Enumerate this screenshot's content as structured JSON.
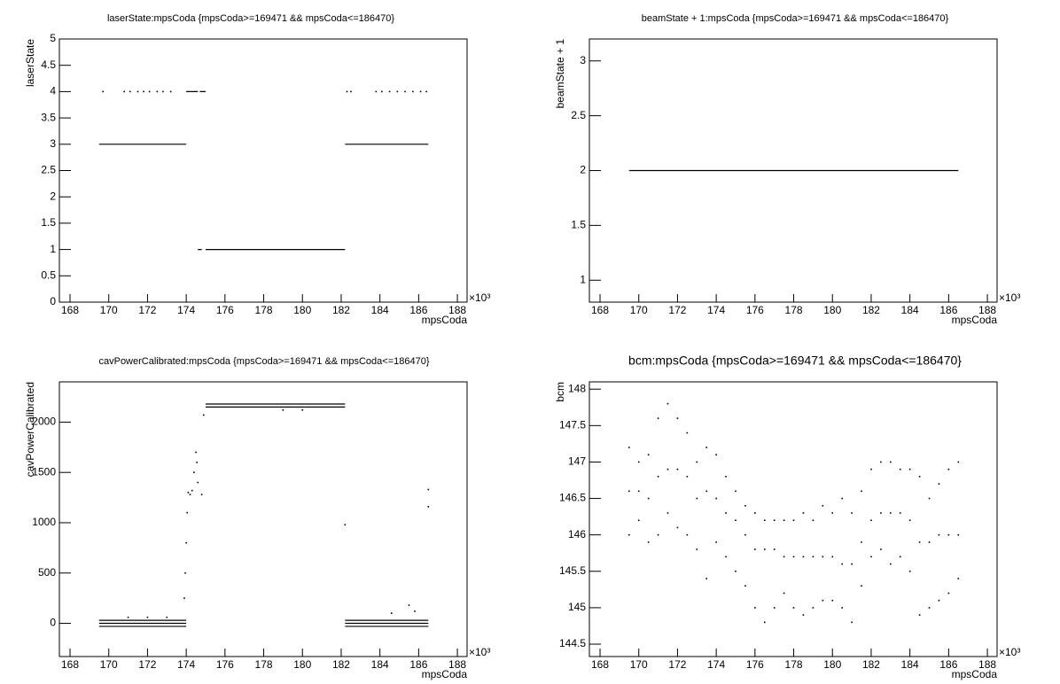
{
  "chart_data": [
    {
      "type": "scatter",
      "title": "laserState:mpsCoda {mpsCoda>=169471 && mpsCoda<=186470}",
      "xlabel": "mpsCoda",
      "ylabel": "laserState",
      "x_exponent": "×10³",
      "xlim": [
        167.45,
        188.5
      ],
      "xticks": [
        168,
        170,
        172,
        174,
        176,
        178,
        180,
        182,
        184,
        186,
        188
      ],
      "ylim": [
        0,
        5
      ],
      "yticks": [
        0,
        0.5,
        1,
        1.5,
        2,
        2.5,
        3,
        3.5,
        4,
        4.5,
        5
      ],
      "series": [
        {
          "color": "#000000",
          "connect": true,
          "x": [
            169.5,
            174.0,
            null,
            174.0,
            174.6,
            null,
            174.7,
            175.0,
            null,
            174.6,
            174.8,
            null,
            175.0,
            182.2,
            null,
            182.2,
            186.5
          ],
          "values": [
            3,
            3,
            null,
            4,
            4,
            null,
            4,
            4,
            null,
            1,
            1,
            null,
            1,
            1,
            null,
            3,
            3
          ]
        },
        {
          "color": "#000000",
          "connect": false,
          "x": [
            169.7,
            170.8,
            171.1,
            171.5,
            171.8,
            172.1,
            172.5,
            172.8,
            173.2,
            182.3,
            182.5,
            183.8,
            184.1,
            184.5,
            184.9,
            185.3,
            185.7,
            186.1,
            186.4
          ],
          "values": [
            4,
            4,
            4,
            4,
            4,
            4,
            4,
            4,
            4,
            4,
            4,
            4,
            4,
            4,
            4,
            4,
            4,
            4,
            4
          ]
        }
      ]
    },
    {
      "type": "scatter",
      "title": "beamState + 1:mpsCoda {mpsCoda>=169471 && mpsCoda<=186470}",
      "xlabel": "mpsCoda",
      "ylabel": "beamState + 1",
      "x_exponent": "×10³",
      "xlim": [
        167.45,
        188.5
      ],
      "xticks": [
        168,
        170,
        172,
        174,
        176,
        178,
        180,
        182,
        184,
        186,
        188
      ],
      "ylim": [
        0.8,
        3.2
      ],
      "yticks": [
        1,
        1.5,
        2,
        2.5,
        3
      ],
      "series": [
        {
          "color": "#000000",
          "connect": true,
          "x": [
            169.5,
            186.5
          ],
          "values": [
            2,
            2
          ]
        }
      ]
    },
    {
      "type": "scatter",
      "title": "cavPowerCalibrated:mpsCoda {mpsCoda>=169471 && mpsCoda<=186470}",
      "xlabel": "mpsCoda",
      "ylabel": "cavPowerCalibrated",
      "x_exponent": "×10³",
      "xlim": [
        167.45,
        188.5
      ],
      "xticks": [
        168,
        170,
        172,
        174,
        176,
        178,
        180,
        182,
        184,
        186,
        188
      ],
      "ylim": [
        -330,
        2400
      ],
      "yticks": [
        0,
        500,
        1000,
        1500,
        2000
      ],
      "series": [
        {
          "color": "#000000",
          "connect": true,
          "x": [
            169.5,
            174.0,
            null,
            169.5,
            174.0,
            null,
            169.5,
            174.0,
            null,
            175.0,
            182.2,
            null,
            175.0,
            182.2,
            null,
            182.2,
            186.5,
            null,
            182.2,
            186.5,
            null,
            182.2,
            186.5
          ],
          "values": [
            30,
            30,
            null,
            0,
            0,
            null,
            -30,
            -30,
            null,
            2180,
            2180,
            null,
            2150,
            2150,
            null,
            30,
            30,
            null,
            0,
            0,
            null,
            -30,
            -30
          ]
        },
        {
          "color": "#000000",
          "connect": false,
          "x": [
            171.0,
            172.0,
            173.0,
            173.9,
            173.95,
            174.0,
            174.05,
            174.1,
            174.2,
            174.3,
            174.4,
            174.5,
            174.55,
            174.6,
            174.8,
            174.9,
            179.0,
            180.0,
            182.2,
            184.6,
            185.5,
            185.8,
            186.5,
            186.5
          ],
          "values": [
            60,
            60,
            60,
            250,
            500,
            800,
            1100,
            1300,
            1280,
            1320,
            1500,
            1700,
            1600,
            1400,
            1280,
            2070,
            2120,
            2120,
            980,
            100,
            180,
            120,
            1330,
            1160
          ]
        }
      ]
    },
    {
      "type": "scatter",
      "title": "bcm:mpsCoda {mpsCoda>=169471 && mpsCoda<=186470}",
      "xlabel": "mpsCoda",
      "ylabel": "bcm",
      "x_exponent": "×10³",
      "xlim": [
        167.45,
        188.5
      ],
      "xticks": [
        168,
        170,
        172,
        174,
        176,
        178,
        180,
        182,
        184,
        186,
        188
      ],
      "ylim": [
        144.33,
        148.1
      ],
      "yticks": [
        144.5,
        145,
        145.5,
        146,
        146.5,
        147,
        147.5,
        148
      ],
      "series": [
        {
          "color": "#000000",
          "connect": false,
          "x": [
            169.5,
            170,
            170.5,
            171,
            171.5,
            172,
            172.5,
            173,
            173.5,
            174,
            174.5,
            175,
            175.5,
            176,
            176.5,
            177,
            177.5,
            178,
            178.5,
            179,
            179.5,
            180,
            180.5,
            181,
            181.5,
            182,
            182.5,
            183,
            183.5,
            184,
            184.5,
            185,
            185.5,
            186,
            186.5
          ],
          "values": [
            147.2,
            147.0,
            147.1,
            147.6,
            147.8,
            147.6,
            147.4,
            147.0,
            147.2,
            147.1,
            146.8,
            146.6,
            146.4,
            146.3,
            146.2,
            146.2,
            146.2,
            146.2,
            146.3,
            146.2,
            146.4,
            146.3,
            146.5,
            146.3,
            146.6,
            146.9,
            147.0,
            147.0,
            146.9,
            146.9,
            146.8,
            146.5,
            146.7,
            146.9,
            147.0
          ]
        },
        {
          "color": "#000000",
          "connect": false,
          "x": [
            169.5,
            170,
            170.5,
            171,
            171.5,
            172,
            172.5,
            173,
            173.5,
            174,
            174.5,
            175,
            175.5,
            176,
            176.5,
            177,
            177.5,
            178,
            178.5,
            179,
            179.5,
            180,
            180.5,
            181,
            181.5,
            182,
            182.5,
            183,
            183.5,
            184,
            184.5,
            185,
            185.5,
            186,
            186.5
          ],
          "values": [
            146.6,
            146.6,
            146.5,
            146.8,
            146.9,
            146.9,
            146.8,
            146.5,
            146.6,
            146.5,
            146.3,
            146.2,
            146.0,
            145.8,
            145.8,
            145.8,
            145.7,
            145.7,
            145.7,
            145.7,
            145.7,
            145.7,
            145.6,
            145.6,
            145.9,
            146.2,
            146.3,
            146.3,
            146.3,
            146.2,
            145.9,
            145.9,
            146.0,
            146.0,
            146.0
          ]
        },
        {
          "color": "#000000",
          "connect": false,
          "x": [
            169.5,
            170,
            170.5,
            171,
            171.5,
            172,
            172.5,
            173,
            173.5,
            174,
            174.5,
            175,
            175.5,
            176,
            176.5,
            177,
            177.5,
            178,
            178.5,
            179,
            179.5,
            180,
            180.5,
            181,
            181.5,
            182,
            182.5,
            183,
            183.5,
            184,
            184.5,
            185,
            185.5,
            186,
            186.5
          ],
          "values": [
            146.0,
            146.2,
            145.9,
            146.0,
            146.3,
            146.1,
            146.0,
            145.8,
            145.4,
            145.9,
            145.7,
            145.5,
            145.3,
            145.0,
            144.8,
            145.0,
            145.2,
            145.0,
            144.9,
            145.0,
            145.1,
            145.1,
            145.0,
            144.8,
            145.3,
            145.7,
            145.8,
            145.6,
            145.7,
            145.5,
            144.9,
            145.0,
            145.1,
            145.2,
            145.4
          ]
        }
      ]
    }
  ]
}
